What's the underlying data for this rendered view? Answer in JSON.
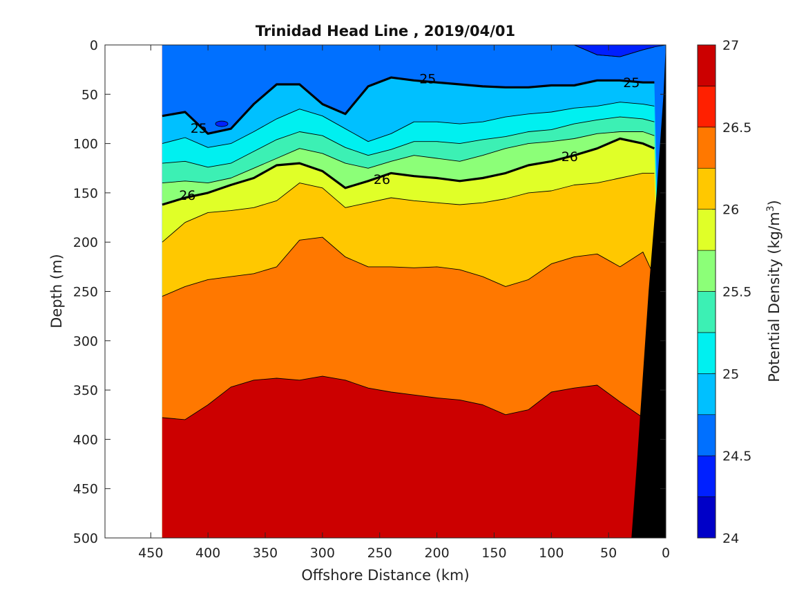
{
  "chart_data": {
    "type": "filled-contour",
    "title": "Trinidad Head Line , 2019/04/01",
    "xlabel": "Offshore Distance (km)",
    "ylabel": "Depth (m)",
    "xlim": [
      490,
      0
    ],
    "ylim": [
      500,
      0
    ],
    "x_ticks": [
      450,
      400,
      350,
      300,
      250,
      200,
      150,
      100,
      50,
      0
    ],
    "x_tick_labels": [
      "450",
      "400",
      "350",
      "300",
      "250",
      "200",
      "150",
      "100",
      "50",
      "0"
    ],
    "y_ticks": [
      0,
      50,
      100,
      150,
      200,
      250,
      300,
      350,
      400,
      450,
      500
    ],
    "y_tick_labels": [
      "0",
      "50",
      "100",
      "150",
      "200",
      "250",
      "300",
      "350",
      "400",
      "450",
      "500"
    ],
    "data_extent_x": [
      440,
      0
    ],
    "colorbar": {
      "label": "Potential Density (kg/m",
      "label_superscript": "3",
      "label_suffix": ")",
      "range": [
        24,
        27
      ],
      "ticks": [
        24,
        24.5,
        25,
        25.5,
        26,
        26.5,
        27
      ],
      "tick_labels": [
        "24",
        "24.5",
        "25",
        "25.5",
        "26",
        "26.5",
        "27"
      ],
      "colors": [
        "#00008c",
        "#0000c8",
        "#0020ff",
        "#0070ff",
        "#00c0ff",
        "#00f0f0",
        "#3cf0b4",
        "#8cff78",
        "#e0ff28",
        "#ffc800",
        "#ff7800",
        "#ff2000",
        "#cc0000"
      ]
    },
    "levels": [
      24.25,
      24.5,
      24.75,
      25,
      25.25,
      25.5,
      25.75,
      26,
      26.25,
      26.5,
      26.75
    ],
    "bold_levels": [
      25,
      26
    ],
    "contour_labels": [
      {
        "text": "25",
        "x": 208,
        "y": 34
      },
      {
        "text": "25",
        "x": 30,
        "y": 38
      },
      {
        "text": "25",
        "x": 408,
        "y": 84
      },
      {
        "text": "26",
        "x": 84,
        "y": 113
      },
      {
        "text": "26",
        "x": 248,
        "y": 136
      },
      {
        "text": "26",
        "x": 418,
        "y": 152
      }
    ],
    "isopycnal_depths": {
      "x": [
        440,
        420,
        400,
        380,
        360,
        340,
        320,
        300,
        280,
        260,
        240,
        220,
        200,
        180,
        160,
        140,
        120,
        100,
        80,
        60,
        40,
        20,
        10
      ],
      "sigma_24_75": [
        null,
        null,
        null,
        null,
        null,
        null,
        null,
        null,
        null,
        null,
        null,
        null,
        null,
        null,
        null,
        null,
        null,
        null,
        0,
        10,
        12,
        5,
        2
      ],
      "sigma_25_0": [
        72,
        68,
        90,
        85,
        60,
        40,
        40,
        60,
        70,
        42,
        33,
        36,
        38,
        40,
        42,
        43,
        43,
        41,
        41,
        36,
        36,
        38,
        38
      ],
      "sigma_25_25": [
        100,
        94,
        104,
        100,
        88,
        75,
        65,
        72,
        85,
        98,
        90,
        78,
        78,
        80,
        78,
        73,
        70,
        68,
        64,
        62,
        58,
        60,
        62
      ],
      "sigma_25_5": [
        120,
        118,
        124,
        120,
        108,
        96,
        88,
        92,
        104,
        112,
        106,
        98,
        98,
        100,
        96,
        93,
        88,
        86,
        80,
        76,
        73,
        75,
        78
      ],
      "sigma_25_75": [
        140,
        138,
        140,
        135,
        125,
        115,
        105,
        110,
        120,
        125,
        118,
        112,
        115,
        118,
        112,
        105,
        100,
        98,
        95,
        90,
        88,
        88,
        92
      ],
      "sigma_26_0": [
        162,
        155,
        150,
        142,
        135,
        122,
        120,
        128,
        145,
        138,
        130,
        133,
        135,
        138,
        135,
        130,
        122,
        118,
        112,
        105,
        95,
        100,
        105
      ],
      "sigma_26_25": [
        200,
        180,
        170,
        168,
        165,
        158,
        140,
        145,
        165,
        160,
        155,
        158,
        160,
        162,
        160,
        156,
        150,
        148,
        142,
        140,
        135,
        130,
        130
      ],
      "sigma_26_5": [
        255,
        245,
        238,
        235,
        232,
        225,
        198,
        195,
        215,
        225,
        225,
        226,
        225,
        228,
        235,
        245,
        238,
        222,
        215,
        212,
        225,
        210,
        235
      ],
      "sigma_26_75": [
        378,
        380,
        365,
        347,
        340,
        338,
        340,
        336,
        340,
        348,
        352,
        355,
        358,
        360,
        365,
        375,
        370,
        352,
        348,
        345,
        362,
        378,
        388
      ]
    },
    "bathymetry": [
      [
        30,
        500
      ],
      [
        25,
        420
      ],
      [
        15,
        250
      ],
      [
        8,
        150
      ],
      [
        2,
        50
      ],
      [
        0,
        0
      ],
      [
        0,
        500
      ]
    ],
    "grid": false,
    "colorbar_location": "right"
  }
}
